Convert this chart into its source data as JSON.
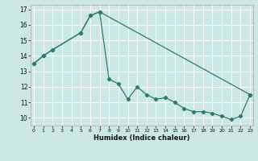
{
  "xlabel": "Humidex (Indice chaleur)",
  "bg_color": "#cce8e4",
  "line_color": "#2d7a6a",
  "grid_color": "#b0d8d4",
  "line1_x": [
    0,
    1,
    2,
    5,
    6,
    7,
    8,
    9,
    10,
    11,
    12,
    13,
    14,
    15,
    16,
    17,
    18,
    19,
    20,
    21,
    22,
    23
  ],
  "line1_y": [
    13.5,
    14.0,
    14.4,
    15.5,
    16.6,
    16.85,
    12.5,
    12.2,
    11.2,
    12.0,
    11.5,
    11.2,
    11.3,
    11.0,
    10.6,
    10.4,
    10.4,
    10.3,
    10.1,
    9.9,
    10.1,
    11.5
  ],
  "line2_x": [
    0,
    1,
    2,
    5,
    6,
    7,
    23
  ],
  "line2_y": [
    13.5,
    14.0,
    14.4,
    15.5,
    16.6,
    16.85,
    11.5
  ],
  "xlim": [
    -0.3,
    23.3
  ],
  "ylim": [
    9.5,
    17.3
  ],
  "yticks": [
    10,
    11,
    12,
    13,
    14,
    15,
    16,
    17
  ],
  "xticks": [
    0,
    1,
    2,
    3,
    4,
    5,
    6,
    7,
    8,
    9,
    10,
    11,
    12,
    13,
    14,
    15,
    16,
    17,
    18,
    19,
    20,
    21,
    22,
    23
  ]
}
